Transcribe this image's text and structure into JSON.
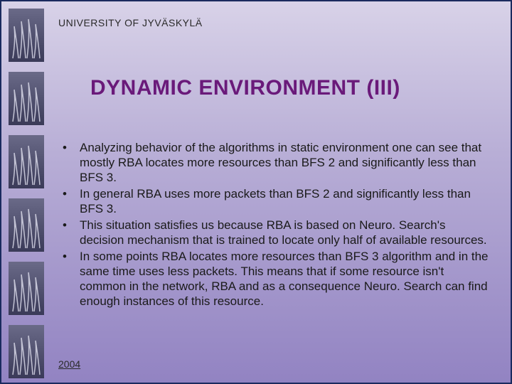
{
  "header": {
    "text": "UNIVERSITY OF JYVÄSKYLÄ"
  },
  "title": {
    "text": "DYNAMIC ENVIRONMENT (III)"
  },
  "bullets": [
    {
      "text": "Analyzing behavior of the algorithms in static environment one can see that mostly RBA locates more resources than BFS 2 and significantly less than BFS 3."
    },
    {
      "text": "In general RBA uses more packets than BFS 2 and significantly less than BFS 3."
    },
    {
      "text": "This situation satisfies us because RBA is based on Neuro. Search's decision mechanism that is trained to locate only half of available resources."
    },
    {
      "text": "In some points RBA locates more resources than BFS 3 algorithm and in the same time uses less packets. This means that if some resource isn't common in the network, RBA and as a consequence Neuro. Search can find enough instances of this resource."
    }
  ],
  "footer": {
    "year": "2004"
  },
  "style": {
    "bg_gradient_top": "#d8d2e8",
    "bg_gradient_mid": "#b8aed6",
    "bg_gradient_bottom": "#9283c2",
    "border_color": "#1a2a5e",
    "title_color": "#6a1a7a",
    "text_color": "#1a1a1a",
    "header_color": "#2a2a2a",
    "flame_bg_top": "#6a6a88",
    "flame_bg_bottom": "#3a3a58",
    "flame_stroke": "#d8d8e8",
    "title_fontsize": 30,
    "body_fontsize": 17,
    "header_fontsize": 14,
    "sidebar_tiles": 6
  }
}
